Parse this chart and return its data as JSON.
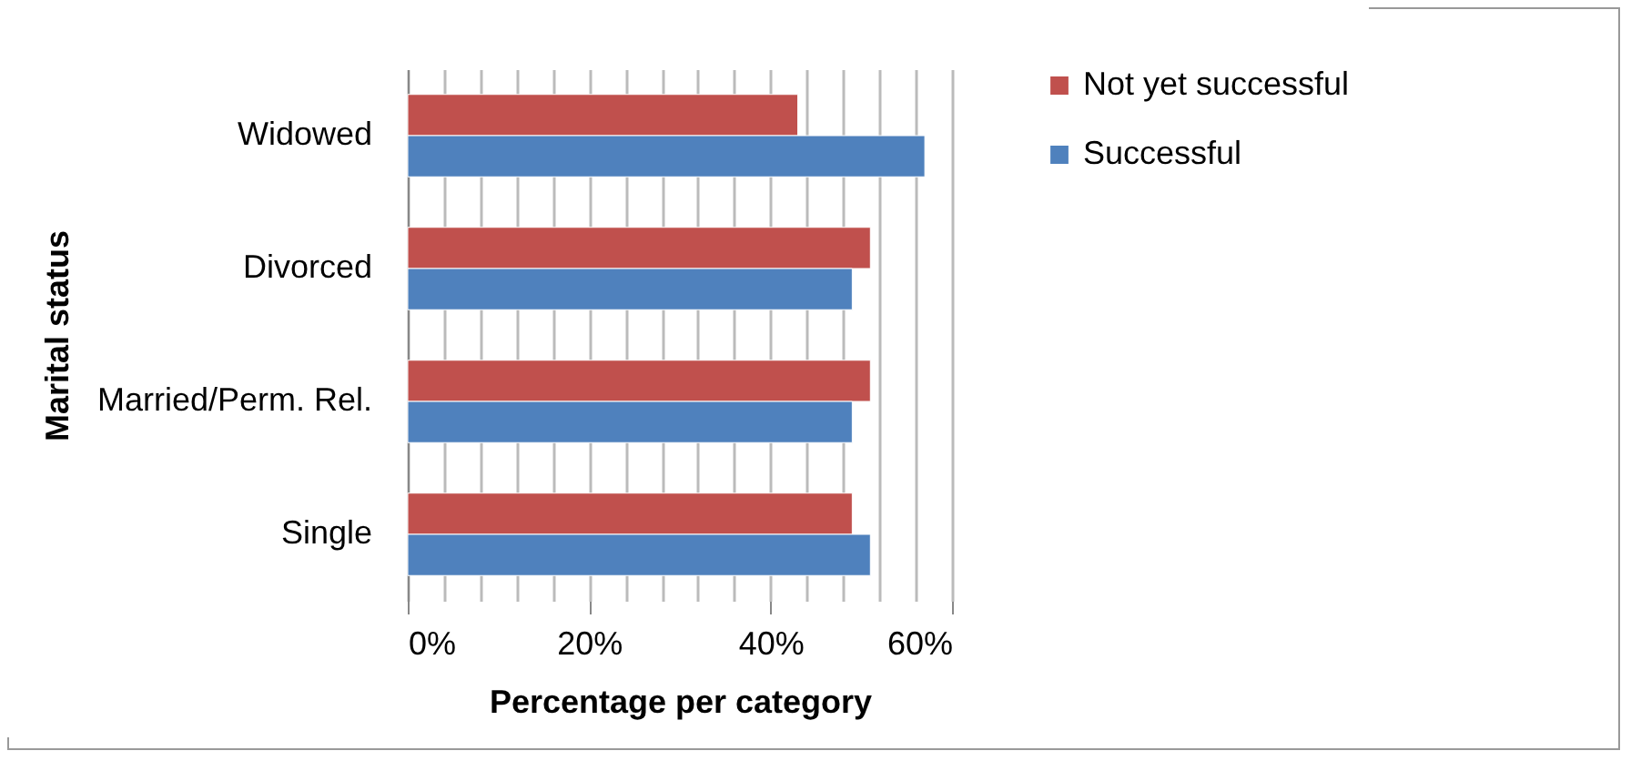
{
  "chart_data": {
    "type": "bar",
    "orientation": "horizontal",
    "xlabel": "Percentage per category",
    "ylabel": "Marital status",
    "categories": [
      "Widowed",
      "Divorced",
      "Married/Perm. Rel.",
      "Single"
    ],
    "series": [
      {
        "name": "Not yet successful",
        "color": "#c0504d",
        "values": [
          43,
          51,
          51,
          49
        ]
      },
      {
        "name": "Successful",
        "color": "#4f81bd",
        "values": [
          57,
          49,
          49,
          51
        ]
      }
    ],
    "xlim": [
      0,
      60
    ],
    "xticks": [
      {
        "value": 0,
        "label": "0%"
      },
      {
        "value": 4,
        "label": null
      },
      {
        "value": 8,
        "label": null
      },
      {
        "value": 12,
        "label": null
      },
      {
        "value": 16,
        "label": null
      },
      {
        "value": 20,
        "label": "20%"
      },
      {
        "value": 24,
        "label": null
      },
      {
        "value": 28,
        "label": null
      },
      {
        "value": 32,
        "label": null
      },
      {
        "value": 36,
        "label": null
      },
      {
        "value": 40,
        "label": "40%"
      },
      {
        "value": 44,
        "label": null
      },
      {
        "value": 48,
        "label": null
      },
      {
        "value": 52,
        "label": null
      },
      {
        "value": 56,
        "label": null
      },
      {
        "value": 60,
        "label": "60%"
      }
    ],
    "grid": "x",
    "legend": "right"
  }
}
